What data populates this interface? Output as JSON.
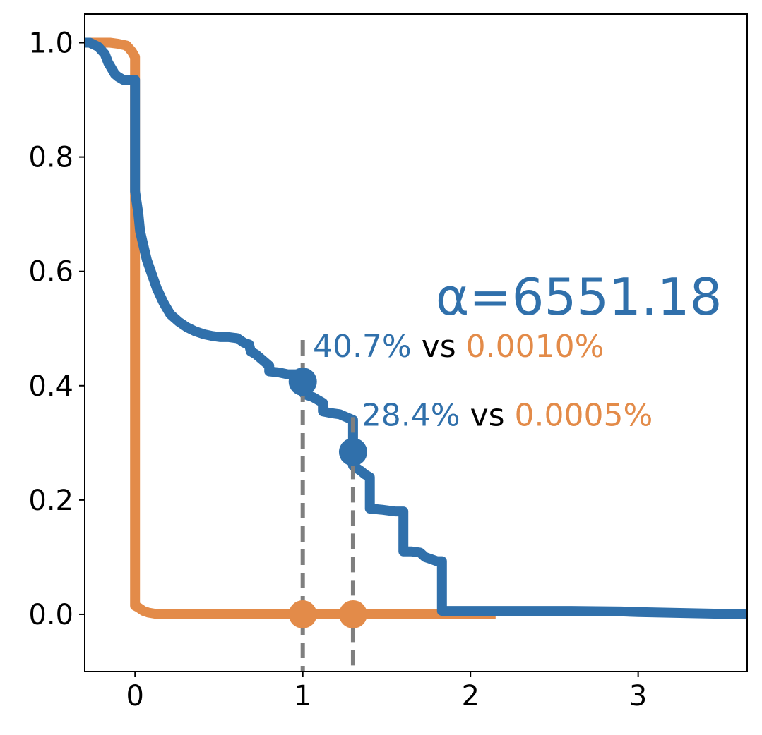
{
  "chart_data": {
    "type": "line",
    "title": "",
    "xlabel": "",
    "ylabel": "",
    "xlim": [
      -0.3,
      3.65
    ],
    "ylim": [
      -0.1,
      1.05
    ],
    "grid": false,
    "x_ticks": [
      0,
      1,
      2,
      3
    ],
    "x_tick_labels": [
      "0",
      "1",
      "2",
      "3"
    ],
    "y_ticks": [
      0.0,
      0.2,
      0.4,
      0.6,
      0.8,
      1.0
    ],
    "y_tick_labels": [
      "0.0",
      "0.2",
      "0.4",
      "0.6",
      "0.8",
      "1.0"
    ],
    "series": [
      {
        "name": "blue",
        "color": "#3070ab",
        "x": [
          -0.3,
          -0.27,
          -0.22,
          -0.18,
          -0.16,
          -0.14,
          -0.12,
          -0.1,
          -0.07,
          -0.03,
          0.0,
          0.0,
          0.02,
          0.03,
          0.05,
          0.07,
          0.1,
          0.13,
          0.17,
          0.21,
          0.26,
          0.31,
          0.36,
          0.41,
          0.46,
          0.51,
          0.56,
          0.61,
          0.65,
          0.68,
          0.69,
          0.72,
          0.76,
          0.78,
          0.8,
          0.8,
          0.86,
          0.91,
          0.96,
          0.97,
          0.98,
          1.01,
          1.06,
          1.12,
          1.12,
          1.17,
          1.22,
          1.26,
          1.3,
          1.3,
          1.35,
          1.37,
          1.4,
          1.4,
          1.47,
          1.55,
          1.6,
          1.6,
          1.65,
          1.7,
          1.73,
          1.76,
          1.8,
          1.83,
          1.83,
          1.9,
          2.0,
          2.3,
          2.6,
          2.9,
          3.0,
          3.3,
          3.65
        ],
        "y": [
          1.0,
          1.0,
          0.993,
          0.98,
          0.965,
          0.955,
          0.945,
          0.94,
          0.935,
          0.935,
          0.935,
          0.74,
          0.7,
          0.67,
          0.645,
          0.62,
          0.595,
          0.57,
          0.545,
          0.525,
          0.512,
          0.502,
          0.495,
          0.49,
          0.487,
          0.485,
          0.485,
          0.483,
          0.475,
          0.472,
          0.46,
          0.455,
          0.445,
          0.44,
          0.435,
          0.425,
          0.423,
          0.42,
          0.42,
          0.41,
          0.395,
          0.385,
          0.38,
          0.37,
          0.355,
          0.352,
          0.35,
          0.345,
          0.34,
          0.26,
          0.25,
          0.245,
          0.24,
          0.185,
          0.183,
          0.18,
          0.18,
          0.11,
          0.11,
          0.108,
          0.1,
          0.097,
          0.093,
          0.093,
          0.006,
          0.006,
          0.006,
          0.006,
          0.006,
          0.005,
          0.004,
          0.002,
          0.0
        ]
      },
      {
        "name": "orange",
        "color": "#e38b49",
        "x": [
          -0.3,
          -0.15,
          -0.1,
          -0.05,
          -0.02,
          0.0,
          0.0,
          0.0,
          0.02,
          0.05,
          0.08,
          0.12,
          0.2,
          0.5,
          1.0,
          1.5,
          2.0,
          2.15
        ],
        "y": [
          1.0,
          1.0,
          0.998,
          0.995,
          0.985,
          0.975,
          0.9,
          0.015,
          0.012,
          0.006,
          0.003,
          0.001,
          0.0005,
          0.0003,
          0.0002,
          0.0001,
          0.0,
          0.0
        ]
      }
    ],
    "vlines": [
      {
        "x": 1.0,
        "y_top": 0.48
      },
      {
        "x": 1.3,
        "y_top": 0.345
      }
    ],
    "markers": [
      {
        "series": "blue",
        "x": 1.0,
        "y": 0.407
      },
      {
        "series": "blue",
        "x": 1.3,
        "y": 0.284
      },
      {
        "series": "orange",
        "x": 1.0,
        "y": 0.0
      },
      {
        "series": "orange",
        "x": 1.3,
        "y": 0.0
      }
    ],
    "annotations": [
      {
        "x": 1.06,
        "y": 0.47,
        "blue_text": "40.7%",
        "mid_text": " vs ",
        "orange_text": "0.0010%"
      },
      {
        "x": 1.35,
        "y": 0.35,
        "blue_text": "28.4%",
        "mid_text": " vs ",
        "orange_text": "0.0005%"
      }
    ],
    "alpha_label": {
      "x": 3.5,
      "y": 0.555,
      "text": "α=6551.18",
      "color": "#3070ab"
    },
    "vline_color": "#7f7f7f",
    "text_color": "#000000"
  }
}
